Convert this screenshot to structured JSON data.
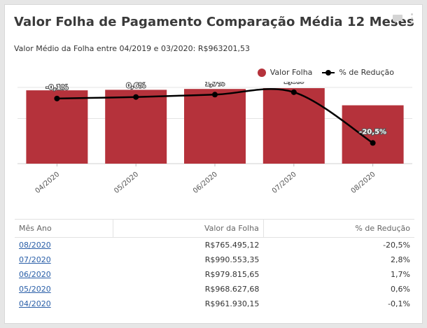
{
  "header": {
    "title": "Valor Folha de Pagamento Comparação Média 12 Meses",
    "subtitle": "Valor Médio da Folha entre 04/2019 e 03/2020: R$963201,53"
  },
  "legend": {
    "bar_label": "Valor Folha",
    "line_label": "% de Redução"
  },
  "colors": {
    "bar": "#b5323b",
    "line": "#000000",
    "link": "#2a5fa8"
  },
  "chart_data": {
    "type": "bar",
    "categories": [
      "04/2020",
      "05/2020",
      "06/2020",
      "07/2020",
      "08/2020"
    ],
    "series": [
      {
        "name": "Valor Folha",
        "type": "bar",
        "values": [
          961930.15,
          968627.68,
          979815.65,
          990553.35,
          765495.12
        ]
      },
      {
        "name": "% de Redução",
        "type": "line",
        "values": [
          -0.1,
          0.6,
          1.7,
          2.8,
          -20.5
        ]
      }
    ],
    "data_labels": [
      "-0,1%",
      "0,6%",
      "1,7%",
      "2,8%",
      "-20,5%"
    ],
    "ylim": [
      0,
      1000000
    ],
    "line_ylim": [
      -30,
      5
    ],
    "legend": "top-right"
  },
  "table": {
    "headers": [
      "Mês Ano",
      "Valor da Folha",
      "% de Redução"
    ],
    "rows": [
      {
        "month": "08/2020",
        "value": "R$765.495,12",
        "pct": "-20,5%"
      },
      {
        "month": "07/2020",
        "value": "R$990.553,35",
        "pct": "2,8%"
      },
      {
        "month": "06/2020",
        "value": "R$979.815,65",
        "pct": "1,7%"
      },
      {
        "month": "05/2020",
        "value": "R$968.627,68",
        "pct": "0,6%"
      },
      {
        "month": "04/2020",
        "value": "R$961.930,15",
        "pct": "-0,1%"
      }
    ]
  }
}
